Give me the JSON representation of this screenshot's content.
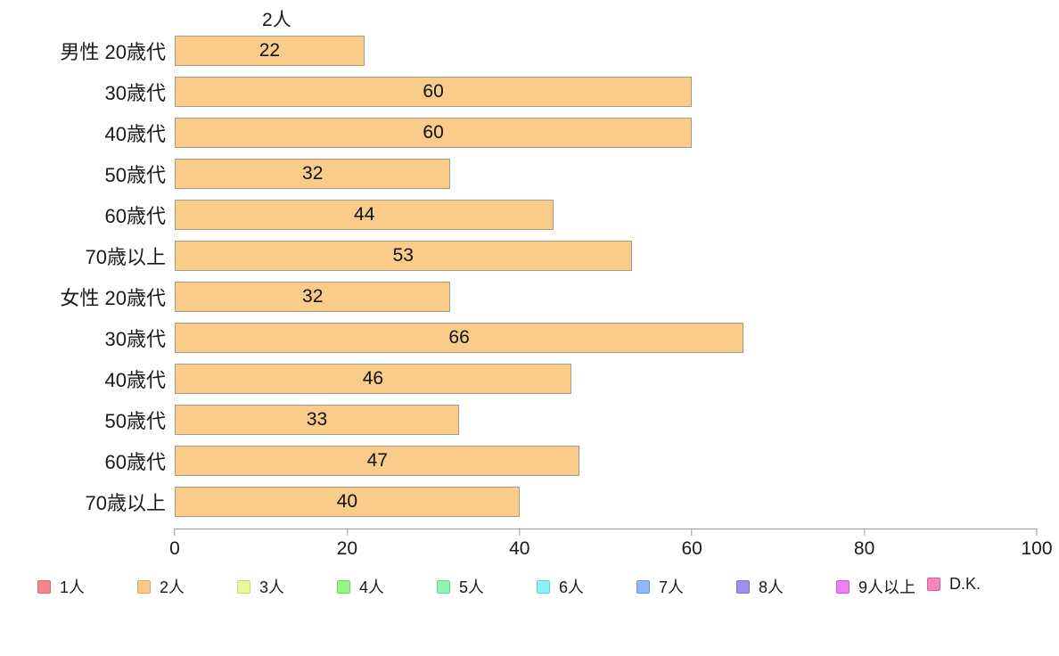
{
  "chart_data": {
    "type": "bar",
    "orientation": "horizontal",
    "series_label": "2人",
    "categories": [
      "男性 20歳代",
      "30歳代",
      "40歳代",
      "50歳代",
      "60歳代",
      "70歳以上",
      "女性 20歳代",
      "30歳代",
      "40歳代",
      "50歳代",
      "60歳代",
      "70歳以上"
    ],
    "values": [
      22,
      60,
      60,
      32,
      44,
      53,
      32,
      66,
      46,
      33,
      47,
      40
    ],
    "xlim": [
      0,
      100
    ],
    "x_ticks": [
      0,
      20,
      40,
      60,
      80,
      100
    ],
    "grid": false,
    "legend_position": "bottom",
    "bar_color": "#FACC8A",
    "bar_border_color": "#A89B85"
  },
  "legend": {
    "items": [
      {
        "label": "1人",
        "color": "#F5878B",
        "border": "#D96A6E"
      },
      {
        "label": "2人",
        "color": "#F9C98B",
        "border": "#D9A85F"
      },
      {
        "label": "3人",
        "color": "#ECF79B",
        "border": "#C9D970"
      },
      {
        "label": "4人",
        "color": "#97F588",
        "border": "#68D95C"
      },
      {
        "label": "5人",
        "color": "#8CF5B6",
        "border": "#5ED98E"
      },
      {
        "label": "6人",
        "color": "#8BF4F8",
        "border": "#5ED0D9"
      },
      {
        "label": "7人",
        "color": "#90BAF6",
        "border": "#6A95D9"
      },
      {
        "label": "8人",
        "color": "#9C8FF0",
        "border": "#7F6FD6"
      },
      {
        "label": "9人以上",
        "color": "#EE82F5",
        "border": "#C95ED9"
      },
      {
        "label": "D.K.",
        "color": "#F785BD",
        "border": "#D95E96"
      }
    ]
  }
}
